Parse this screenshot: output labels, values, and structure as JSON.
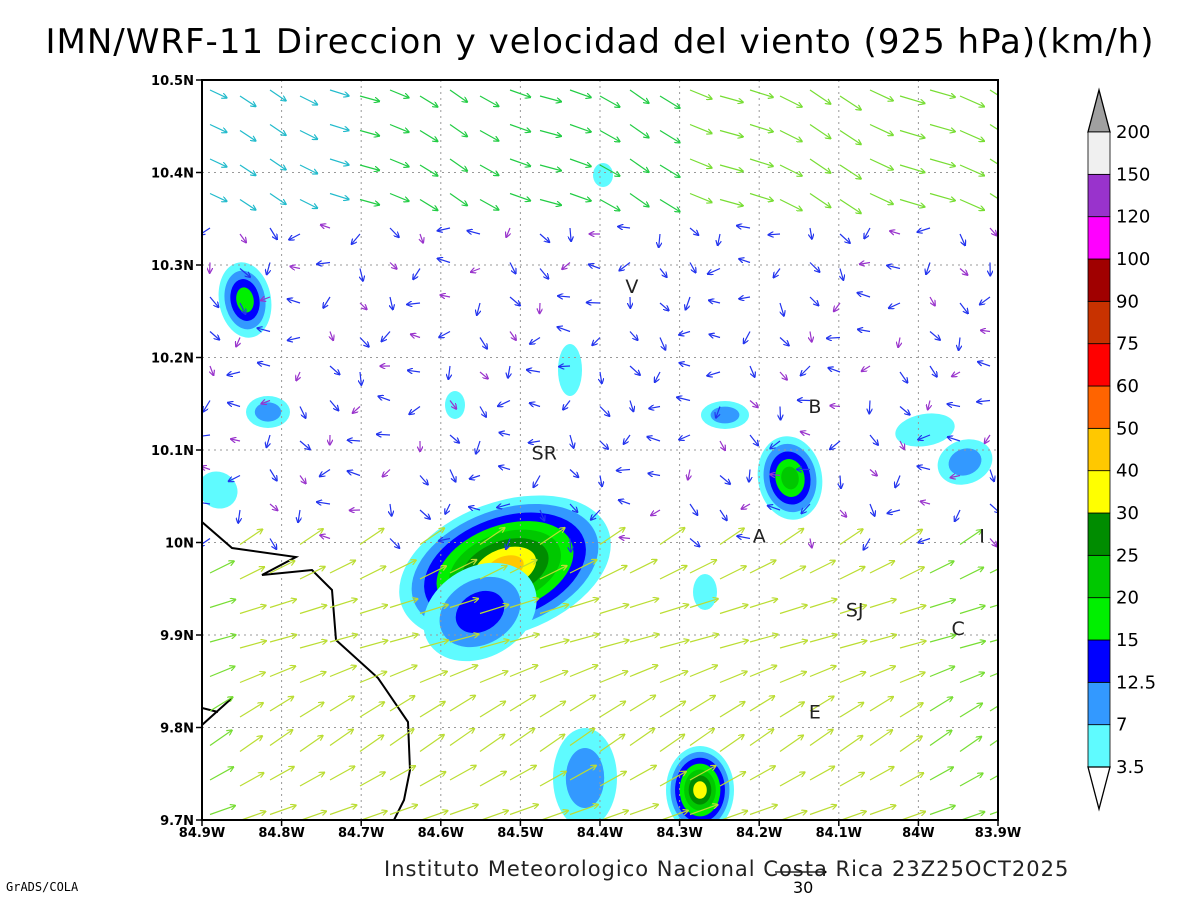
{
  "title": "IMN/WRF-11 Direccion y velocidad del viento (925 hPa)(km/h)",
  "credit": "Instituto Meteorologico Nacional Costa Rica 23Z25OCT2025",
  "software": "GrADS/COLA",
  "reference_vector": {
    "label": "30",
    "speed_kmh": 30
  },
  "axes": {
    "x_ticks": [
      "84.9W",
      "84.8W",
      "84.7W",
      "84.6W",
      "84.5W",
      "84.4W",
      "84.3W",
      "84.2W",
      "84.1W",
      "84W",
      "83.9W"
    ],
    "y_ticks": [
      "10.5N",
      "10.4N",
      "10.3N",
      "10.2N",
      "10.1N",
      "10N",
      "9.9N",
      "9.8N",
      "9.7N"
    ],
    "lon_range": [
      -84.9,
      -83.9
    ],
    "lat_range": [
      9.7,
      10.5
    ],
    "grid": true
  },
  "colorbar": {
    "levels": [
      "3.5",
      "7",
      "12.5",
      "15",
      "20",
      "25",
      "30",
      "40",
      "50",
      "60",
      "75",
      "90",
      "100",
      "120",
      "150",
      "200"
    ],
    "colors": [
      "#ffffff",
      "#5ffbff",
      "#3399ff",
      "#0000ff",
      "#00f000",
      "#00c800",
      "#008c00",
      "#ffff00",
      "#ffc800",
      "#ff6400",
      "#ff0000",
      "#c83200",
      "#a00000",
      "#ff00ff",
      "#9933cc",
      "#f0f0f0",
      "#a0a0a0"
    ]
  },
  "cities": [
    {
      "label": "V",
      "lon": -84.36,
      "lat": 10.27
    },
    {
      "label": "SR",
      "lon": -84.47,
      "lat": 10.09
    },
    {
      "label": "B",
      "lon": -84.13,
      "lat": 10.14
    },
    {
      "label": "A",
      "lon": -84.2,
      "lat": 10.0
    },
    {
      "label": "I",
      "lon": -83.92,
      "lat": 10.0
    },
    {
      "label": "SJ",
      "lon": -84.08,
      "lat": 9.92
    },
    {
      "label": "C",
      "lon": -83.95,
      "lat": 9.9
    },
    {
      "label": "E",
      "lon": -84.13,
      "lat": 9.81
    }
  ]
}
